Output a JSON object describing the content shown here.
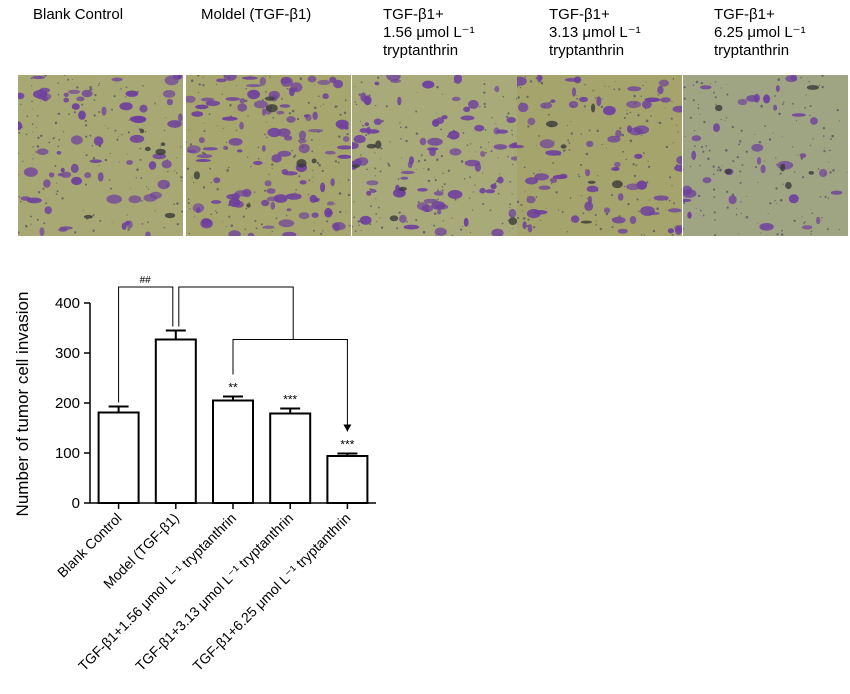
{
  "panels": [
    {
      "label": "Blank Control",
      "bg": "#a7a874",
      "density": 0.9
    },
    {
      "label": "Moldel  (TGF-β1)",
      "bg": "#a6a66e",
      "density": 1.5
    },
    {
      "label": "TGF-β1+\n1.56 μmol L⁻¹\ntryptanthrin",
      "bg": "#a9aa7a",
      "density": 1.05
    },
    {
      "label": "TGF-β1+\n3.13 μmol L⁻¹\ntryptanthrin",
      "bg": "#a4a46c",
      "density": 0.95
    },
    {
      "label": "TGF-β1+\n6.25 μmol L⁻¹\ntryptanthrin",
      "bg": "#9fa482",
      "density": 0.45
    }
  ],
  "colors": {
    "cells": "#6e3f9e",
    "dark_debris": "#3a3a3a",
    "specks": "#4e4a5e"
  },
  "chart_data": {
    "type": "bar",
    "ylabel": "Number of tumor cell invasion",
    "ylim": [
      0,
      400
    ],
    "yticks": [
      0,
      100,
      200,
      300,
      400
    ],
    "categories": [
      "Blank Control",
      "Model (TGF-β1)",
      "TGF-β1+1.56 μmol L⁻¹ tryptanthrin",
      "TGF-β1+3.13 μmol L⁻¹ tryptanthrin",
      "TGF-β1+6.25 μmol L⁻¹ tryptanthrin"
    ],
    "values": [
      181,
      327,
      205,
      179,
      94
    ],
    "errors": [
      12,
      18,
      8,
      10,
      5
    ],
    "significance": [
      "",
      "",
      "**",
      "***",
      "***"
    ],
    "bracket_label": "##"
  }
}
